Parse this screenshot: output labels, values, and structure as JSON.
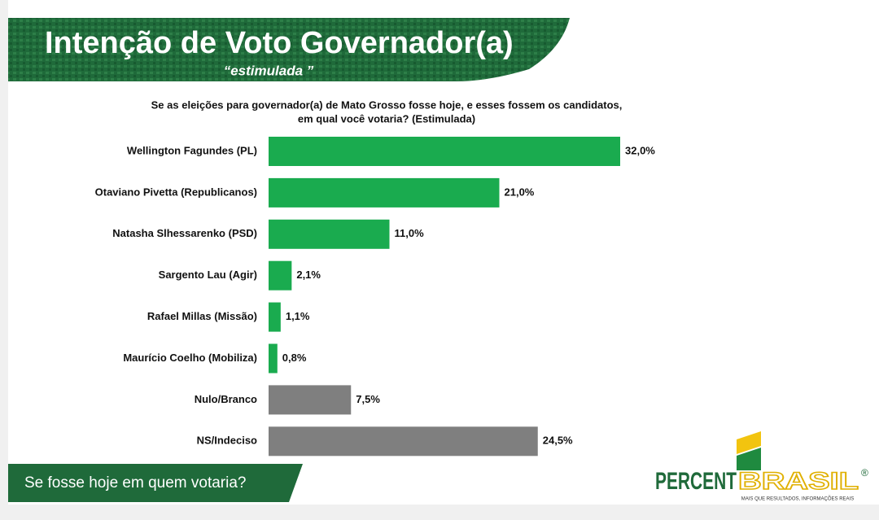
{
  "header": {
    "title": "Intenção de Voto Governador(a)",
    "subtitle": "“estimulada ”"
  },
  "chart_data": {
    "type": "hbar",
    "question": [
      "Se as eleições para governador(a) de Mato Grosso fosse hoje, e esses fossem os candidatos,",
      "em qual você votaria? (Estimulada)"
    ],
    "categories": [
      "Wellington Fagundes (PL)",
      "Otaviano Pivetta (Republicanos)",
      "Natasha Slhessarenko (PSD)",
      "Sargento Lau (Agir)",
      "Rafael Millas (Missão)",
      "Maurício Coelho (Mobiliza)",
      "Nulo/Branco",
      "NS/Indeciso"
    ],
    "values": [
      32.0,
      21.0,
      11.0,
      2.1,
      1.1,
      0.8,
      7.5,
      24.5
    ],
    "value_labels": [
      "32,0%",
      "21,0%",
      "11,0%",
      "2,1%",
      "1,1%",
      "0,8%",
      "7,5%",
      "24,5%"
    ],
    "colors": [
      "#1aab4f",
      "#1aab4f",
      "#1aab4f",
      "#1aab4f",
      "#1aab4f",
      "#1aab4f",
      "#7f7f7f",
      "#7f7f7f"
    ]
  },
  "footer": {
    "text": "Se fosse hoje em quem votaria?"
  },
  "logo": {
    "part1": "PERCENT",
    "part2": "BRASIL",
    "mark": "®",
    "tagline": "MAIS QUE RESULTADOS, INFORMAÇÕES REAIS"
  }
}
